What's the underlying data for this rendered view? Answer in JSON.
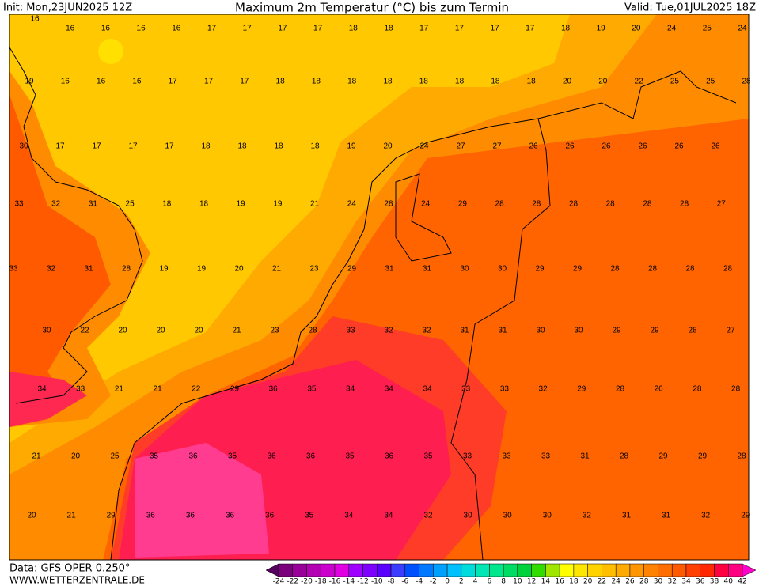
{
  "header": {
    "init": "Init: Mon,23JUN2025 12Z",
    "title": "Maximum 2m Temperatur (°C) bis zum Termin",
    "valid": "Valid: Tue,01JUL2025 18Z"
  },
  "footer": {
    "data": "Data: GFS OPER 0.250°",
    "site": "WWW.WETTERZENTRALE.DE"
  },
  "labels": {
    "rows": [
      [
        16,
        16,
        16,
        16,
        16,
        17,
        17,
        17,
        17,
        18,
        18,
        17,
        17,
        17,
        17,
        18,
        19,
        20,
        24,
        25,
        24
      ],
      [
        19,
        16,
        16,
        16,
        17,
        17,
        17,
        18,
        18,
        18,
        18,
        18,
        18,
        18,
        18,
        20,
        20,
        22,
        25,
        25,
        28
      ],
      [
        30,
        17,
        17,
        17,
        17,
        18,
        18,
        18,
        18,
        19,
        20,
        24,
        27,
        27,
        26,
        26,
        26,
        26,
        26,
        26
      ],
      [
        33,
        32,
        31,
        25,
        18,
        18,
        19,
        19,
        21,
        24,
        28,
        24,
        29,
        28,
        28,
        28,
        28,
        28,
        28,
        27
      ],
      [
        33,
        32,
        31,
        28,
        19,
        19,
        20,
        21,
        23,
        29,
        31,
        31,
        30,
        30,
        29,
        29,
        28,
        28,
        28,
        28
      ],
      [
        30,
        22,
        20,
        20,
        20,
        21,
        23,
        28,
        33,
        32,
        32,
        31,
        31,
        30,
        30,
        29,
        29,
        28,
        27
      ],
      [
        34,
        33,
        21,
        21,
        22,
        29,
        36,
        35,
        34,
        34,
        34,
        33,
        33,
        32,
        29,
        28,
        26,
        28,
        28
      ],
      [
        21,
        20,
        25,
        35,
        36,
        35,
        36,
        36,
        35,
        36,
        35,
        33,
        33,
        33,
        31,
        28,
        29,
        29,
        28
      ],
      [
        20,
        21,
        29,
        36,
        36,
        36,
        36,
        35,
        34,
        34,
        32,
        30,
        30,
        30,
        32,
        31,
        31,
        32,
        29
      ]
    ]
  },
  "colorbar": {
    "ticks": [
      -24,
      -22,
      -20,
      -18,
      -16,
      -14,
      -12,
      -10,
      -8,
      -6,
      -4,
      -2,
      0,
      2,
      4,
      6,
      8,
      10,
      12,
      14,
      16,
      18,
      20,
      22,
      24,
      26,
      28,
      30,
      32,
      34,
      36,
      38,
      40,
      42
    ],
    "colors": [
      "#55005f",
      "#7b007b",
      "#990099",
      "#b300b3",
      "#cc00cc",
      "#e100e1",
      "#a000ff",
      "#8000ff",
      "#5a00ff",
      "#3c3cff",
      "#0050ff",
      "#0078ff",
      "#00a0ff",
      "#00c0ff",
      "#00dcdc",
      "#00e6b4",
      "#00e68c",
      "#00dc64",
      "#00d23c",
      "#32dc00",
      "#a0e600",
      "#ffff00",
      "#ffe600",
      "#ffd200",
      "#ffbe00",
      "#ffaa00",
      "#ff9600",
      "#ff8200",
      "#ff6e00",
      "#ff5a00",
      "#ff4000",
      "#ff2800",
      "#ff0040",
      "#ff0080",
      "#ff00c8"
    ]
  }
}
